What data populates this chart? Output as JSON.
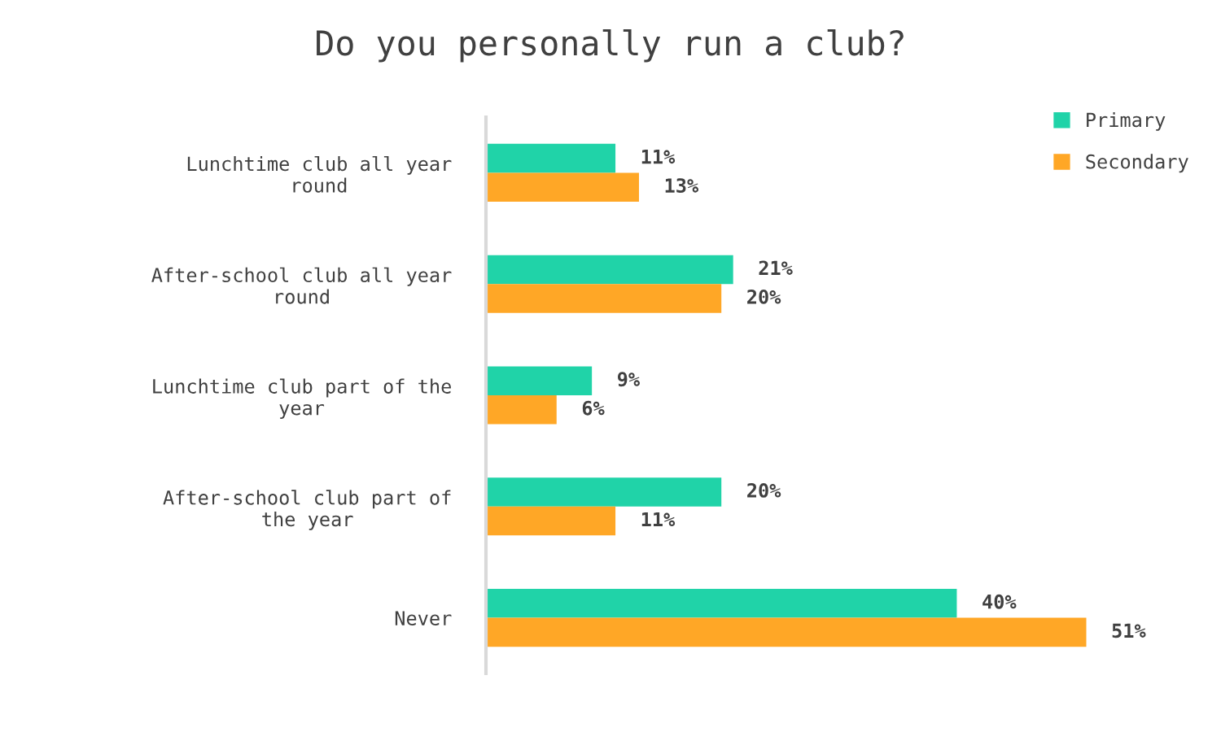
{
  "chart_data": {
    "type": "bar",
    "orientation": "horizontal",
    "title": "Do you personally run a club?",
    "categories": [
      "Lunchtime club all year\nround",
      "After-school club all year\nround",
      "Lunchtime club part of the\nyear",
      "After-school club part of\nthe year",
      "Never"
    ],
    "series": [
      {
        "name": "Primary",
        "color": "#20d3a8",
        "values": [
          11,
          21,
          9,
          20,
          40
        ],
        "value_labels": [
          "11%",
          "21%",
          "9%",
          "20%",
          "40%"
        ]
      },
      {
        "name": "Secondary",
        "color": "#ffa726",
        "values": [
          13,
          20,
          6,
          11,
          51
        ],
        "value_labels": [
          "13%",
          "20%",
          "6%",
          "11%",
          "51%"
        ]
      }
    ],
    "tick_labels": "y",
    "legend": "top right",
    "grid": false
  }
}
